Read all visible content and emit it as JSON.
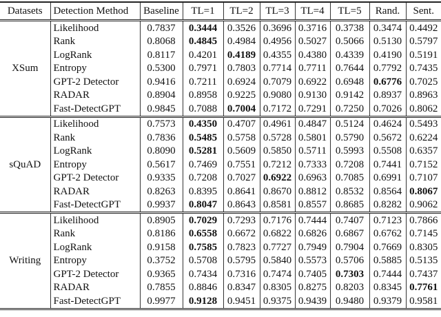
{
  "headers": [
    "Datasets",
    "Detection Method",
    "Baseline",
    "TL=1",
    "TL=2",
    "TL=3",
    "TL=4",
    "TL=5",
    "Rand.",
    "Sent."
  ],
  "groups": [
    {
      "dataset": "XSum",
      "rows": [
        {
          "method": "Likelihood",
          "values": [
            "0.7837",
            "0.3444",
            "0.3526",
            "0.3696",
            "0.3716",
            "0.3738",
            "0.3474",
            "0.4492"
          ],
          "bold": [
            1
          ]
        },
        {
          "method": "Rank",
          "values": [
            "0.8068",
            "0.4845",
            "0.4984",
            "0.4956",
            "0.5027",
            "0.5066",
            "0.5130",
            "0.5797"
          ],
          "bold": [
            1
          ]
        },
        {
          "method": "LogRank",
          "values": [
            "0.8117",
            "0.4201",
            "0.4189",
            "0.4355",
            "0.4380",
            "0.4339",
            "0.4190",
            "0.5191"
          ],
          "bold": [
            2
          ]
        },
        {
          "method": "Entropy",
          "values": [
            "0.5300",
            "0.7971",
            "0.7803",
            "0.7714",
            "0.7711",
            "0.7644",
            "0.7792",
            "0.7435"
          ],
          "bold": []
        },
        {
          "method": "GPT-2 Detector",
          "values": [
            "0.9416",
            "0.7211",
            "0.6924",
            "0.7079",
            "0.6922",
            "0.6948",
            "0.6776",
            "0.7025"
          ],
          "bold": [
            6
          ]
        },
        {
          "method": "RADAR",
          "values": [
            "0.8904",
            "0.8958",
            "0.9225",
            "0.9080",
            "0.9130",
            "0.9142",
            "0.8937",
            "0.8963"
          ],
          "bold": []
        },
        {
          "method": "Fast-DetectGPT",
          "values": [
            "0.9845",
            "0.7088",
            "0.7004",
            "0.7172",
            "0.7291",
            "0.7250",
            "0.7026",
            "0.8062"
          ],
          "bold": [
            2
          ]
        }
      ]
    },
    {
      "dataset": "sQuAD",
      "rows": [
        {
          "method": "Likelihood",
          "values": [
            "0.7573",
            "0.4350",
            "0.4707",
            "0.4961",
            "0.4847",
            "0.5124",
            "0.4624",
            "0.5493"
          ],
          "bold": [
            1
          ]
        },
        {
          "method": "Rank",
          "values": [
            "0.7836",
            "0.5485",
            "0.5758",
            "0.5728",
            "0.5801",
            "0.5790",
            "0.5672",
            "0.6224"
          ],
          "bold": [
            1
          ]
        },
        {
          "method": "LogRank",
          "values": [
            "0.8090",
            "0.5281",
            "0.5609",
            "0.5850",
            "0.5711",
            "0.5993",
            "0.5508",
            "0.6357"
          ],
          "bold": [
            1
          ]
        },
        {
          "method": "Entropy",
          "values": [
            "0.5617",
            "0.7469",
            "0.7551",
            "0.7212",
            "0.7333",
            "0.7208",
            "0.7441",
            "0.7152"
          ],
          "bold": []
        },
        {
          "method": "GPT-2 Detector",
          "values": [
            "0.9335",
            "0.7208",
            "0.7027",
            "0.6922",
            "0.6963",
            "0.7085",
            "0.6991",
            "0.7107"
          ],
          "bold": [
            3
          ]
        },
        {
          "method": "RADAR",
          "values": [
            "0.8263",
            "0.8395",
            "0.8641",
            "0.8670",
            "0.8812",
            "0.8532",
            "0.8564",
            "0.8067"
          ],
          "bold": [
            7
          ]
        },
        {
          "method": "Fast-DetectGPT",
          "values": [
            "0.9937",
            "0.8047",
            "0.8643",
            "0.8581",
            "0.8557",
            "0.8685",
            "0.8282",
            "0.9062"
          ],
          "bold": [
            1
          ]
        }
      ]
    },
    {
      "dataset": "Writing",
      "rows": [
        {
          "method": "Likelihood",
          "values": [
            "0.8905",
            "0.7029",
            "0.7293",
            "0.7176",
            "0.7444",
            "0.7407",
            "0.7123",
            "0.7866"
          ],
          "bold": [
            1
          ]
        },
        {
          "method": "Rank",
          "values": [
            "0.8186",
            "0.6558",
            "0.6672",
            "0.6822",
            "0.6826",
            "0.6867",
            "0.6762",
            "0.7145"
          ],
          "bold": [
            1
          ]
        },
        {
          "method": "LogRank",
          "values": [
            "0.9158",
            "0.7585",
            "0.7823",
            "0.7727",
            "0.7949",
            "0.7904",
            "0.7669",
            "0.8305"
          ],
          "bold": [
            1
          ]
        },
        {
          "method": "Entropy",
          "values": [
            "0.3752",
            "0.5708",
            "0.5795",
            "0.5840",
            "0.5573",
            "0.5706",
            "0.5885",
            "0.5135"
          ],
          "bold": []
        },
        {
          "method": "GPT-2 Detector",
          "values": [
            "0.9365",
            "0.7434",
            "0.7316",
            "0.7474",
            "0.7405",
            "0.7303",
            "0.7444",
            "0.7437"
          ],
          "bold": [
            5
          ]
        },
        {
          "method": "RADAR",
          "values": [
            "0.7855",
            "0.8846",
            "0.8347",
            "0.8305",
            "0.8275",
            "0.8203",
            "0.8345",
            "0.7761"
          ],
          "bold": [
            7
          ]
        },
        {
          "method": "Fast-DetectGPT",
          "values": [
            "0.9977",
            "0.9128",
            "0.9451",
            "0.9375",
            "0.9439",
            "0.9480",
            "0.9379",
            "0.9581"
          ],
          "bold": [
            1
          ]
        }
      ]
    }
  ]
}
